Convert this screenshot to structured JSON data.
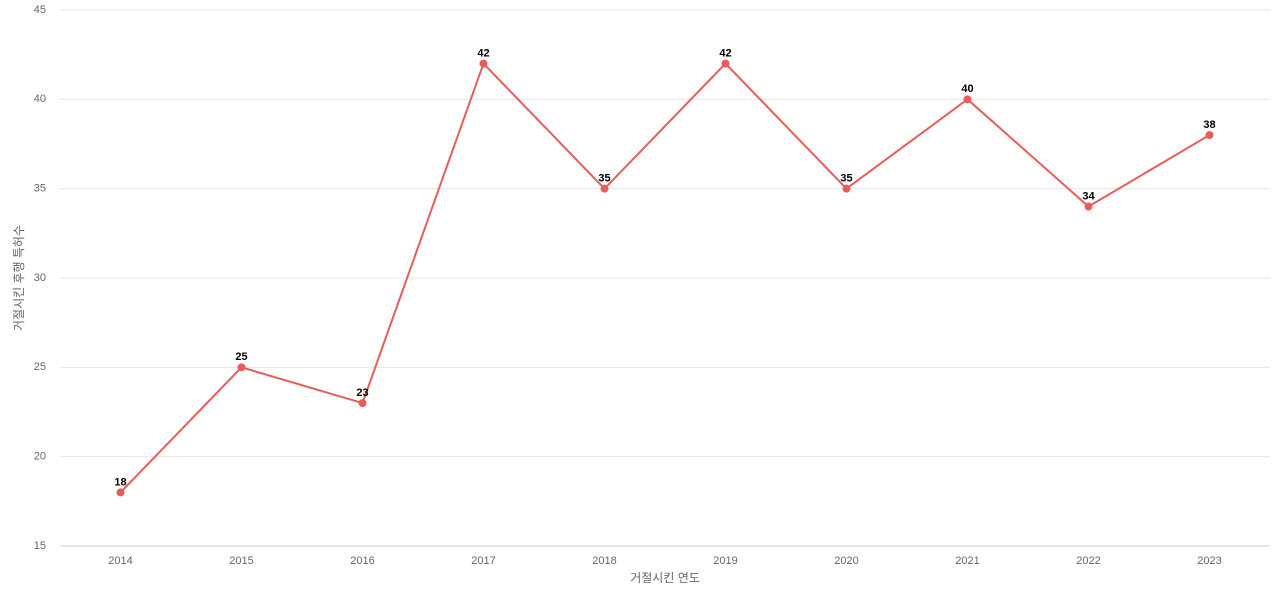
{
  "chart_data": {
    "type": "line",
    "x_label": "거절시킨 연도",
    "y_label": "거절시킨 후행 특허수",
    "categories": [
      "2014",
      "2015",
      "2016",
      "2017",
      "2018",
      "2019",
      "2020",
      "2021",
      "2022",
      "2023"
    ],
    "values": [
      18,
      25,
      23,
      42,
      35,
      42,
      35,
      40,
      34,
      38
    ],
    "color": "#e95c5c",
    "ylim": [
      15,
      45
    ],
    "yticks": [
      15,
      20,
      25,
      30,
      35,
      40,
      45
    ],
    "grid": true
  }
}
